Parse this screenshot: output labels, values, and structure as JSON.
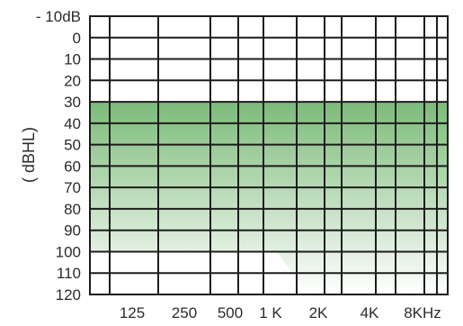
{
  "chart_data": {
    "type": "area",
    "ylabel": "( dBHL)",
    "xlabel": "",
    "title": "",
    "x_tick_labels": [
      "125",
      "250",
      "500",
      "1 K",
      "2K",
      "4K",
      "8KHz"
    ],
    "y_tick_labels": [
      "- 10dB",
      "0",
      "10",
      "20",
      "30",
      "40",
      "50",
      "60",
      "70",
      "80",
      "90",
      "100",
      "110",
      "120"
    ],
    "ylim": [
      -10,
      120
    ],
    "y_reversed": true,
    "x_scale": "log",
    "x_unit": "Hz",
    "grid": true,
    "shaded_region": {
      "description_values": "hearing range band",
      "upper_boundary_db": 30,
      "lower_boundary_points": [
        {
          "x": 125,
          "y": 100
        },
        {
          "x": 1000,
          "y": 100
        },
        {
          "x": 1500,
          "y": 120
        },
        {
          "x": 8000,
          "y": 120
        }
      ],
      "color_top": "#7cbb79",
      "color_bottom": "#ffffff"
    }
  }
}
